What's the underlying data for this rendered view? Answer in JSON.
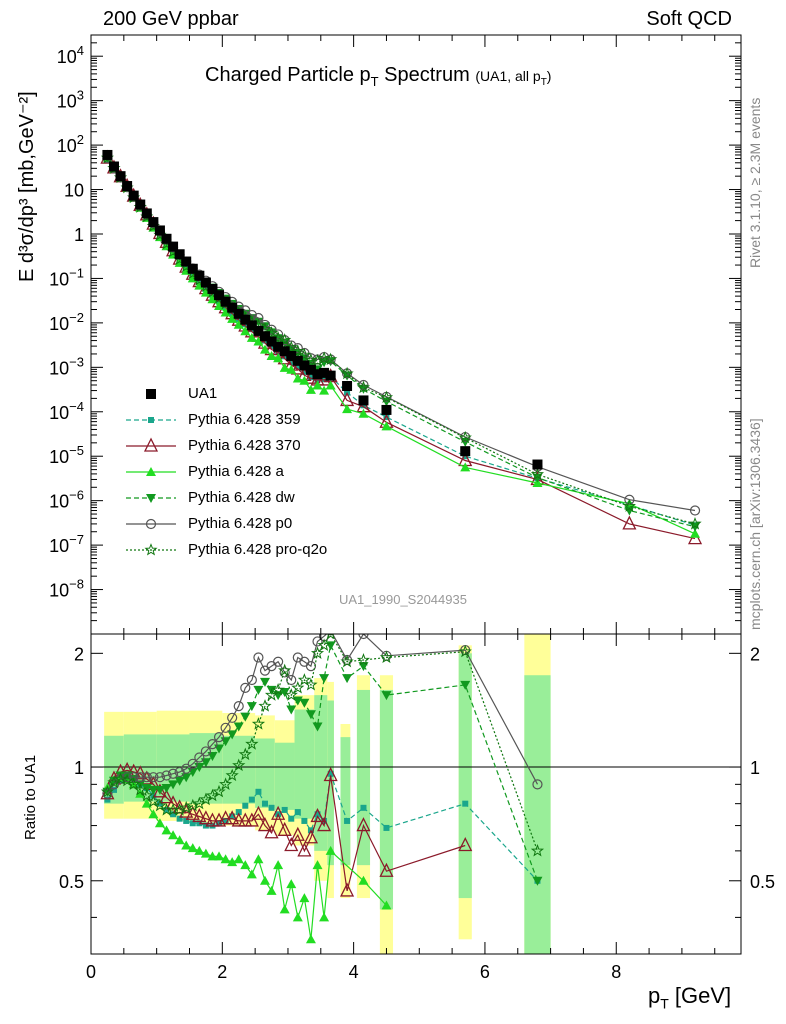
{
  "header": {
    "left": "200 GeV ppbar",
    "right": "Soft QCD",
    "side_top": "Rivet 3.1.10, ≥ 2.3M events",
    "side_bottom": "mcplots.cern.ch [arXiv:1306.3436]"
  },
  "plot": {
    "title_main": "Charged Particle p",
    "title_sub": "T",
    "title_main2": " Spectrum",
    "title_note": "(UA1, all p",
    "title_note_sub": "T",
    "title_note_end": ")",
    "ylabel": "E d³σ/dp³ [mb,GeV⁻²]",
    "analysis_id": "UA1_1990_S2044935",
    "ratio_ylabel": "Ratio to UA1",
    "xlabel": "p",
    "xlabel_sub": "T",
    "xlabel_unit": " [GeV]"
  },
  "colors": {
    "ua1": "#000000",
    "p359": "#1aa68c",
    "p370": "#8b1a2a",
    "pa": "#22dd22",
    "pdw": "#11991f",
    "pp0": "#555555",
    "ppro": "#117711",
    "band_yellow": "#ffff99",
    "band_green": "#99ee99"
  },
  "chart_data": {
    "type": "scatter",
    "x_range": [
      0,
      9.9
    ],
    "ylim_main": [
      1e-09,
      30000.0
    ],
    "ylim_ratio": [
      0.32,
      2.25
    ],
    "y_scale_main": "log",
    "x_ticks": [
      "0",
      "2",
      "4",
      "6",
      "8"
    ],
    "y_ticks_main": [
      "10^-8",
      "10^-7",
      "10^-6",
      "10^-5",
      "10^-4",
      "10^-3",
      "10^-2",
      "10^-1",
      "1",
      "10",
      "10^2",
      "10^3",
      "10^4"
    ],
    "y_ticks_ratio": [
      "0.5",
      "1",
      "2"
    ],
    "legend_position": "left",
    "legend": [
      "UA1",
      "Pythia 6.428 359",
      "Pythia 6.428 370",
      "Pythia 6.428 a",
      "Pythia 6.428 dw",
      "Pythia 6.428 p0",
      "Pythia 6.428 pro-q2o"
    ],
    "data_x": [
      0.25,
      0.35,
      0.45,
      0.55,
      0.65,
      0.75,
      0.85,
      0.95,
      1.05,
      1.15,
      1.25,
      1.35,
      1.45,
      1.55,
      1.65,
      1.75,
      1.85,
      1.95,
      2.05,
      2.15,
      2.25,
      2.35,
      2.45,
      2.55,
      2.65,
      2.75,
      2.85,
      2.95,
      3.05,
      3.15,
      3.25,
      3.35,
      3.45,
      3.55,
      3.65,
      3.9,
      4.15,
      4.5,
      5.7,
      6.8
    ],
    "data_y": [
      60,
      33,
      20,
      12,
      7.3,
      4.6,
      2.9,
      1.85,
      1.2,
      0.78,
      0.52,
      0.35,
      0.24,
      0.165,
      0.115,
      0.081,
      0.058,
      0.042,
      0.03,
      0.022,
      0.016,
      0.0118,
      0.0088,
      0.0066,
      0.005,
      0.0038,
      0.0029,
      0.0023,
      0.0018,
      0.0014,
      0.0011,
      0.00088,
      0.0007,
      0.00075,
      0.00065,
      0.00038,
      0.00018,
      0.00011,
      1.3e-05,
      6.5e-06
    ],
    "bands": [
      {
        "x0": 0.2,
        "x1": 0.5,
        "yellow": [
          0.73,
          1.4
        ],
        "green": [
          0.8,
          1.21
        ]
      },
      {
        "x0": 0.5,
        "x1": 1.0,
        "yellow": [
          0.73,
          1.4
        ],
        "green": [
          0.81,
          1.22
        ]
      },
      {
        "x0": 1.0,
        "x1": 1.5,
        "yellow": [
          0.72,
          1.41
        ],
        "green": [
          0.81,
          1.22
        ]
      },
      {
        "x0": 1.5,
        "x1": 2.0,
        "yellow": [
          0.71,
          1.41
        ],
        "green": [
          0.8,
          1.23
        ]
      },
      {
        "x0": 2.0,
        "x1": 2.5,
        "yellow": [
          0.7,
          1.39
        ],
        "green": [
          0.8,
          1.21
        ]
      },
      {
        "x0": 2.5,
        "x1": 2.8,
        "yellow": [
          0.68,
          1.37
        ],
        "green": [
          0.78,
          1.19
        ]
      },
      {
        "x0": 2.8,
        "x1": 3.1,
        "yellow": [
          0.66,
          1.33
        ],
        "green": [
          0.77,
          1.16
        ]
      },
      {
        "x0": 3.1,
        "x1": 3.4,
        "yellow": [
          0.62,
          1.55
        ],
        "green": [
          0.73,
          1.42
        ]
      },
      {
        "x0": 3.4,
        "x1": 3.6,
        "yellow": [
          0.5,
          1.72
        ],
        "green": [
          0.6,
          1.55
        ]
      },
      {
        "x0": 3.6,
        "x1": 3.7,
        "yellow": [
          0.45,
          1.68
        ],
        "green": [
          0.55,
          1.5
        ]
      },
      {
        "x0": 3.8,
        "x1": 3.95,
        "yellow": [
          0.45,
          1.3
        ],
        "green": [
          0.55,
          1.2
        ]
      },
      {
        "x0": 4.05,
        "x1": 4.25,
        "yellow": [
          0.45,
          1.75
        ],
        "green": [
          0.55,
          1.6
        ]
      },
      {
        "x0": 4.4,
        "x1": 4.6,
        "yellow": [
          0.32,
          1.75
        ],
        "green": [
          0.42,
          1.6
        ]
      },
      {
        "x0": 5.6,
        "x1": 5.8,
        "yellow": [
          0.35,
          2.1
        ],
        "green": [
          0.45,
          2.0
        ]
      },
      {
        "x0": 6.6,
        "x1": 7.0,
        "yellow": [
          0.32,
          2.25
        ],
        "green": [
          0.32,
          1.75
        ]
      }
    ],
    "series": [
      {
        "name": "Pythia 6.428 359",
        "x": [
          0.25,
          0.35,
          0.45,
          0.55,
          0.65,
          0.75,
          0.85,
          0.95,
          1.05,
          1.15,
          1.25,
          1.35,
          1.45,
          1.55,
          1.65,
          1.75,
          1.85,
          1.95,
          2.05,
          2.15,
          2.25,
          2.35,
          2.45,
          2.55,
          2.65,
          2.75,
          2.85,
          2.95,
          3.05,
          3.15,
          3.25,
          3.35,
          3.45,
          3.55,
          3.65,
          3.9,
          4.15,
          4.5,
          5.7,
          6.8,
          8.2,
          9.2
        ],
        "ratio": [
          0.82,
          0.87,
          0.92,
          0.93,
          0.93,
          0.9,
          0.88,
          0.84,
          0.8,
          0.77,
          0.75,
          0.73,
          0.72,
          0.71,
          0.71,
          0.7,
          0.7,
          0.71,
          0.72,
          0.74,
          0.76,
          0.79,
          0.82,
          0.86,
          0.8,
          0.78,
          0.75,
          0.77,
          0.73,
          0.76,
          0.72,
          0.68,
          0.75,
          0.72,
          0.96,
          0.72,
          0.78,
          0.69,
          0.8,
          0.5,
          null,
          null
        ],
        "y": [
          49,
          29,
          18.4,
          11.2,
          6.8,
          4.1,
          2.55,
          1.55,
          0.96,
          0.6,
          0.39,
          0.255,
          0.173,
          0.117,
          0.082,
          0.057,
          0.041,
          0.03,
          0.0216,
          0.0163,
          0.0122,
          0.0093,
          0.0072,
          0.0057,
          0.004,
          0.003,
          0.0022,
          0.00177,
          0.00131,
          0.00106,
          0.00079,
          0.0006,
          0.00053,
          0.00054,
          0.00062,
          0.00027,
          0.00014,
          7.6e-05,
          1e-05,
          3.2e-06,
          8e-07,
          2.8e-07
        ]
      },
      {
        "name": "Pythia 6.428 370",
        "x": [
          0.25,
          0.35,
          0.45,
          0.55,
          0.65,
          0.75,
          0.85,
          0.95,
          1.05,
          1.15,
          1.25,
          1.35,
          1.45,
          1.55,
          1.65,
          1.75,
          1.85,
          1.95,
          2.05,
          2.15,
          2.25,
          2.35,
          2.45,
          2.55,
          2.65,
          2.75,
          2.85,
          2.95,
          3.05,
          3.15,
          3.25,
          3.35,
          3.45,
          3.55,
          3.65,
          3.9,
          4.15,
          4.5,
          5.7,
          6.8,
          8.2,
          9.2
        ],
        "ratio": [
          0.85,
          0.93,
          0.97,
          0.98,
          0.97,
          0.96,
          0.93,
          0.9,
          0.86,
          0.83,
          0.8,
          0.78,
          0.76,
          0.75,
          0.74,
          0.73,
          0.72,
          0.72,
          0.73,
          0.73,
          0.72,
          0.72,
          0.72,
          0.75,
          0.7,
          0.67,
          0.75,
          0.68,
          0.62,
          0.66,
          0.6,
          0.65,
          0.74,
          0.7,
          0.95,
          0.47,
          0.7,
          0.53,
          0.62,
          null,
          null,
          null
        ],
        "y": [
          51,
          30.7,
          19.4,
          11.8,
          7.1,
          4.4,
          2.7,
          1.67,
          1.03,
          0.65,
          0.42,
          0.273,
          0.18,
          0.124,
          0.085,
          0.059,
          0.042,
          0.03,
          0.0219,
          0.0161,
          0.0115,
          0.0085,
          0.0063,
          0.005,
          0.0035,
          0.0025,
          0.0022,
          0.00156,
          0.00112,
          0.00092,
          0.00066,
          0.00057,
          0.00052,
          0.00052,
          0.00062,
          0.00018,
          0.00013,
          5.8e-05,
          8e-06,
          3e-06,
          3e-07,
          1.4e-07
        ]
      },
      {
        "name": "Pythia 6.428 a",
        "x": [
          0.25,
          0.35,
          0.45,
          0.55,
          0.65,
          0.75,
          0.85,
          0.95,
          1.05,
          1.15,
          1.25,
          1.35,
          1.45,
          1.55,
          1.65,
          1.75,
          1.85,
          1.95,
          2.05,
          2.15,
          2.25,
          2.35,
          2.45,
          2.55,
          2.65,
          2.75,
          2.85,
          2.95,
          3.05,
          3.15,
          3.25,
          3.35,
          3.45,
          3.55,
          3.65,
          3.9,
          4.15,
          4.5,
          5.7,
          6.8,
          8.2,
          9.2
        ],
        "ratio": [
          0.88,
          0.92,
          0.94,
          0.93,
          0.9,
          0.85,
          0.8,
          0.75,
          0.71,
          0.68,
          0.66,
          0.64,
          0.62,
          0.61,
          0.6,
          0.59,
          0.58,
          0.58,
          0.57,
          0.56,
          0.57,
          0.55,
          0.52,
          0.57,
          0.5,
          0.47,
          0.55,
          0.42,
          0.49,
          0.4,
          0.45,
          0.35,
          0.55,
          0.4,
          0.6,
          null,
          0.5,
          0.43,
          null,
          null,
          null,
          null
        ],
        "y": [
          52.8,
          30.4,
          18.8,
          11.2,
          6.6,
          3.9,
          2.3,
          1.39,
          0.85,
          0.53,
          0.343,
          0.224,
          0.149,
          0.1,
          0.069,
          0.048,
          0.034,
          0.024,
          0.0171,
          0.0123,
          0.0091,
          0.0065,
          0.0046,
          0.0038,
          0.0025,
          0.0018,
          0.0016,
          0.00097,
          0.00088,
          0.00056,
          0.0005,
          0.00031,
          0.00039,
          0.0003,
          0.00039,
          0.000115,
          9e-05,
          4.7e-05,
          5.6e-06,
          2.5e-06,
          8.5e-07,
          1.8e-07
        ]
      },
      {
        "name": "Pythia 6.428 dw",
        "x": [
          0.25,
          0.35,
          0.45,
          0.55,
          0.65,
          0.75,
          0.85,
          0.95,
          1.05,
          1.15,
          1.25,
          1.35,
          1.45,
          1.55,
          1.65,
          1.75,
          1.85,
          1.95,
          2.05,
          2.15,
          2.25,
          2.35,
          2.45,
          2.55,
          2.65,
          2.75,
          2.85,
          2.95,
          3.05,
          3.15,
          3.25,
          3.35,
          3.45,
          3.55,
          3.65,
          3.9,
          4.15,
          4.5,
          5.7,
          6.8,
          8.2,
          9.2
        ],
        "ratio": [
          0.86,
          0.92,
          0.95,
          0.95,
          0.93,
          0.9,
          0.88,
          0.87,
          0.87,
          0.88,
          0.9,
          0.92,
          0.94,
          0.97,
          1.0,
          1.03,
          1.07,
          1.12,
          1.17,
          1.22,
          1.28,
          1.36,
          1.45,
          1.6,
          1.68,
          1.6,
          1.55,
          1.58,
          1.42,
          1.5,
          1.48,
          1.38,
          1.28,
          1.72,
          2.1,
          1.72,
          1.85,
          1.55,
          1.65,
          0.5,
          null,
          null
        ],
        "y": [
          51.6,
          30.4,
          19,
          11.4,
          6.8,
          4.1,
          2.55,
          1.6,
          1.04,
          0.69,
          0.47,
          0.322,
          0.226,
          0.16,
          0.115,
          0.083,
          0.062,
          0.047,
          0.0351,
          0.0268,
          0.0205,
          0.016,
          0.0128,
          0.0106,
          0.0084,
          0.0061,
          0.0045,
          0.0036,
          0.0026,
          0.0021,
          0.0016,
          0.0012,
          0.0009,
          0.0013,
          0.00137,
          0.00065,
          0.00033,
          0.00017,
          2.1e-05,
          3.3e-06,
          6e-07,
          2.6e-07
        ]
      },
      {
        "name": "Pythia 6.428 p0",
        "x": [
          0.25,
          0.35,
          0.45,
          0.55,
          0.65,
          0.75,
          0.85,
          0.95,
          1.05,
          1.15,
          1.25,
          1.35,
          1.45,
          1.55,
          1.65,
          1.75,
          1.85,
          1.95,
          2.05,
          2.15,
          2.25,
          2.35,
          2.45,
          2.55,
          2.65,
          2.75,
          2.85,
          2.95,
          3.05,
          3.15,
          3.25,
          3.35,
          3.45,
          3.55,
          3.65,
          3.9,
          4.15,
          4.5,
          5.7,
          6.8,
          8.2,
          9.2
        ],
        "ratio": [
          0.85,
          0.9,
          0.93,
          0.94,
          0.94,
          0.94,
          0.94,
          0.94,
          0.94,
          0.95,
          0.96,
          0.97,
          0.99,
          1.02,
          1.06,
          1.1,
          1.15,
          1.2,
          1.27,
          1.35,
          1.45,
          1.62,
          1.7,
          1.95,
          1.8,
          1.85,
          1.9,
          1.78,
          1.7,
          1.95,
          1.9,
          1.85,
          2.15,
          2.22,
          2.3,
          1.92,
          2.25,
          1.97,
          2.04,
          0.9,
          null,
          null
        ],
        "y": [
          51,
          29.7,
          18.6,
          11.3,
          6.9,
          4.3,
          2.7,
          1.74,
          1.13,
          0.74,
          0.5,
          0.34,
          0.238,
          0.168,
          0.122,
          0.089,
          0.067,
          0.05,
          0.0381,
          0.0297,
          0.0232,
          0.0191,
          0.015,
          0.0129,
          0.009,
          0.007,
          0.0055,
          0.0041,
          0.0031,
          0.0027,
          0.0021,
          0.0016,
          0.0015,
          0.0017,
          0.0015,
          0.00073,
          0.0004,
          0.000217,
          2.7e-05,
          5.8e-06,
          1.05e-06,
          6e-07
        ]
      },
      {
        "name": "Pythia 6.428 pro-q2o",
        "x": [
          0.25,
          0.35,
          0.45,
          0.55,
          0.65,
          0.75,
          0.85,
          0.95,
          1.05,
          1.15,
          1.25,
          1.35,
          1.45,
          1.55,
          1.65,
          1.75,
          1.85,
          1.95,
          2.05,
          2.15,
          2.25,
          2.35,
          2.45,
          2.55,
          2.65,
          2.75,
          2.85,
          2.95,
          3.05,
          3.15,
          3.25,
          3.35,
          3.45,
          3.55,
          3.65,
          3.9,
          4.15,
          4.5,
          5.7,
          6.8,
          8.2,
          9.2
        ],
        "ratio": [
          0.86,
          0.91,
          0.93,
          0.92,
          0.9,
          0.87,
          0.84,
          0.81,
          0.79,
          0.77,
          0.77,
          0.77,
          0.78,
          0.79,
          0.8,
          0.82,
          0.84,
          0.86,
          0.9,
          0.95,
          1.01,
          1.08,
          1.15,
          1.3,
          1.45,
          1.55,
          1.6,
          1.8,
          1.55,
          1.62,
          1.7,
          1.65,
          2.0,
          2.1,
          2.25,
          1.9,
          1.92,
          1.95,
          2.02,
          0.6,
          null,
          null
        ],
        "y": [
          51.6,
          30,
          18.6,
          11,
          6.6,
          4,
          2.44,
          1.5,
          0.95,
          0.6,
          0.4,
          0.27,
          0.187,
          0.13,
          0.092,
          0.066,
          0.049,
          0.036,
          0.027,
          0.0209,
          0.0162,
          0.0127,
          0.0101,
          0.0086,
          0.0072,
          0.0059,
          0.0046,
          0.0041,
          0.0028,
          0.0023,
          0.0019,
          0.00145,
          0.0014,
          0.0016,
          0.0015,
          0.00072,
          0.00035,
          0.00021,
          2.6e-05,
          3.9e-06,
          7.5e-07,
          3e-07
        ]
      }
    ]
  }
}
